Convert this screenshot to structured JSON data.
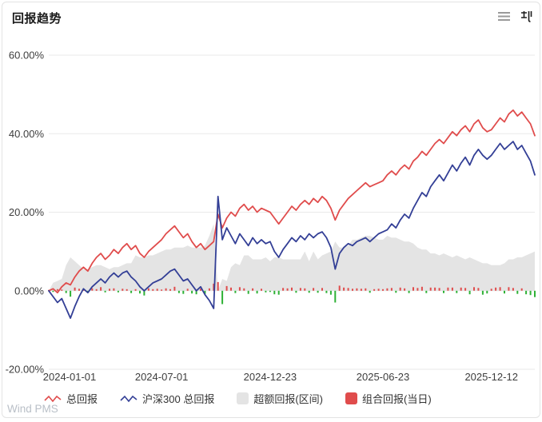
{
  "header": {
    "title": "回报趋势",
    "icons": [
      {
        "name": "menu-icon"
      },
      {
        "name": "table-switch-icon"
      }
    ]
  },
  "watermark": "Wind PMS",
  "colors": {
    "total_return": "#e04c4c",
    "benchmark": "#333f96",
    "excess_area": "#e4e4e4",
    "daily_positive": "#e04c4c",
    "daily_negative": "#2eb135",
    "grid": "#e9e9e9",
    "axis_text": "#3d3d3d"
  },
  "chart_data": {
    "type": "line",
    "title": "回报趋势",
    "ylim": [
      -20,
      60
    ],
    "y_ticks": [
      60,
      40,
      20,
      0,
      -20
    ],
    "y_tick_labels": [
      "60.00%",
      "40.00%",
      "20.00%",
      "0.00%",
      "-20.00%"
    ],
    "x_tick_positions": [
      0,
      26,
      51,
      77,
      102
    ],
    "x_tick_labels": [
      "2024-01-01",
      "2024-07-01",
      "2024-12-23",
      "2025-06-23",
      "2025-12-12"
    ],
    "n_points": 113,
    "grid": true,
    "legend_position": "bottom",
    "series": [
      {
        "name": "总回报",
        "type": "line",
        "color": "#e04c4c",
        "values": [
          0,
          0.5,
          -0.5,
          1,
          2,
          1.5,
          3.5,
          5,
          6,
          5,
          7,
          8.5,
          9.5,
          8,
          9,
          10.5,
          9.5,
          11,
          12,
          10.5,
          11.5,
          9.5,
          8.5,
          10,
          11,
          12,
          13,
          14.5,
          15.5,
          16.5,
          15,
          13.5,
          14.5,
          12.5,
          11,
          12,
          10.5,
          11.5,
          12.5,
          19.5,
          16,
          18.5,
          20,
          19,
          21,
          22,
          20.5,
          21.5,
          20,
          21,
          20.5,
          20,
          18.5,
          17,
          18.5,
          20,
          21.5,
          20.5,
          22,
          23,
          22,
          23.5,
          22.5,
          24,
          23,
          21,
          18,
          20.5,
          22,
          23.5,
          24.5,
          25.5,
          26.5,
          27.5,
          26.5,
          27,
          27.5,
          28,
          29.5,
          30.5,
          29.5,
          31,
          32,
          31,
          33,
          34,
          35.5,
          34.5,
          36,
          37.5,
          38.5,
          37.5,
          39,
          40.5,
          39.5,
          41,
          42,
          40.5,
          42.5,
          43.5,
          41.5,
          40.5,
          41,
          42.5,
          44,
          43,
          45,
          46,
          44.5,
          45.5,
          44,
          42.5,
          39.5
        ]
      },
      {
        "name": "沪深300 总回报",
        "type": "line",
        "color": "#333f96",
        "values": [
          0,
          -1.5,
          -3,
          -2,
          -4.5,
          -7,
          -4,
          -1.5,
          0.5,
          -0.5,
          1,
          2,
          3,
          2,
          3.5,
          4.5,
          3.5,
          4.5,
          5,
          3.5,
          2.5,
          1,
          0,
          1,
          2,
          2.5,
          3,
          4,
          5,
          5.5,
          4,
          2.5,
          3,
          1.5,
          0,
          1,
          -1,
          -2.5,
          -4.5,
          24,
          13,
          16,
          14,
          12,
          14.5,
          13,
          11.5,
          13.5,
          12,
          13,
          12,
          12.5,
          10,
          8.5,
          10.5,
          12,
          13.5,
          12.5,
          14,
          13,
          14.5,
          13.5,
          14.5,
          15,
          13.5,
          11,
          5.5,
          9.5,
          11,
          12,
          11.5,
          12.5,
          13,
          13.5,
          12.5,
          13.5,
          14.5,
          15,
          15.5,
          17,
          16,
          18,
          19.5,
          18.5,
          21,
          23,
          25,
          24,
          26.5,
          28,
          29.5,
          28,
          30,
          32,
          30.5,
          32.5,
          34,
          32,
          34.5,
          36,
          34.5,
          33.5,
          34.5,
          36,
          37.5,
          36,
          37,
          38,
          36,
          37,
          35,
          33,
          29.5
        ]
      },
      {
        "name": "超额回报(区间)",
        "type": "area",
        "color": "#e4e4e4",
        "derived": "max(0, 总回报 - 沪深300 总回报)"
      },
      {
        "name": "组合回报(当日)",
        "type": "bar",
        "color_positive": "#e04c4c",
        "color_negative": "#2eb135",
        "values": [
          0.2,
          -0.3,
          0.4,
          0.3,
          -0.6,
          -1.5,
          0.8,
          0.5,
          0.4,
          -0.5,
          0.6,
          0.4,
          0.9,
          -0.4,
          0.5,
          0.6,
          -0.4,
          0.5,
          0.4,
          -0.6,
          0.4,
          -0.7,
          -1.2,
          0.6,
          0.4,
          0.5,
          0.3,
          0.6,
          0.4,
          1.0,
          -0.6,
          -0.8,
          0.5,
          -0.7,
          -0.9,
          0.5,
          -0.8,
          0.6,
          1.8,
          2.2,
          -3.4,
          1.2,
          0.8,
          -0.6,
          0.9,
          0.6,
          -0.8,
          0.6,
          -0.7,
          0.5,
          -0.4,
          -0.3,
          -0.9,
          -1.0,
          0.7,
          0.6,
          0.8,
          -0.5,
          0.7,
          0.6,
          -0.5,
          0.7,
          -0.5,
          0.7,
          -0.6,
          -1.0,
          -3.0,
          1.3,
          0.8,
          0.7,
          0.5,
          0.6,
          0.5,
          0.6,
          -0.5,
          0.4,
          0.5,
          0.4,
          0.6,
          0.7,
          -0.5,
          0.8,
          0.6,
          -0.6,
          0.9,
          0.7,
          1.0,
          -0.6,
          0.8,
          0.8,
          0.7,
          -0.6,
          0.8,
          0.8,
          -0.6,
          0.8,
          0.7,
          -0.9,
          0.9,
          0.7,
          -1.0,
          -0.7,
          0.5,
          0.8,
          0.9,
          -0.7,
          0.9,
          0.7,
          -0.8,
          0.6,
          -0.9,
          -1.1,
          -1.6
        ]
      }
    ]
  }
}
